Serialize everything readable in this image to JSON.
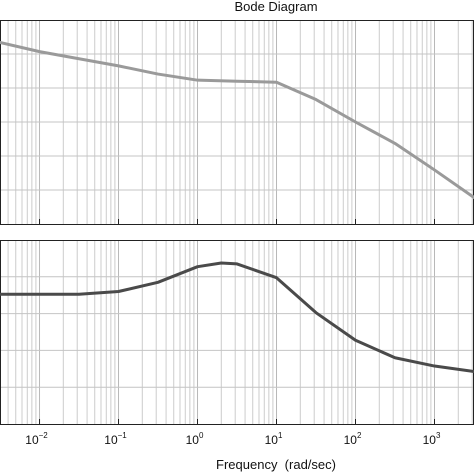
{
  "chart_data": [
    {
      "type": "line",
      "title": "Bode Diagram",
      "xlabel": "Frequency  (rad/sec)",
      "ylabel": "",
      "xscale": "log",
      "xlim": [
        0.00316,
        3162
      ],
      "ylim": [
        0,
        10
      ],
      "grid": true,
      "x_ticks": [
        {
          "base": "10",
          "exp": "−2",
          "value": 0.01
        },
        {
          "base": "10",
          "exp": "−1",
          "value": 0.1
        },
        {
          "base": "10",
          "exp": "0",
          "value": 1
        },
        {
          "base": "10",
          "exp": "1",
          "value": 10
        },
        {
          "base": "10",
          "exp": "2",
          "value": 100
        },
        {
          "base": "10",
          "exp": "3",
          "value": 1000
        }
      ],
      "series": [
        {
          "color": "#9a9a9a",
          "x": [
            0.00316,
            0.01,
            0.0316,
            0.1,
            0.316,
            1,
            3.16,
            10,
            31.6,
            100,
            316,
            1000,
            3162
          ],
          "y": [
            8.9,
            8.45,
            8.1,
            7.75,
            7.35,
            7.05,
            7.0,
            6.95,
            6.1,
            5.0,
            3.95,
            2.65,
            1.3
          ]
        }
      ]
    },
    {
      "type": "line",
      "title": "",
      "xlabel": "",
      "ylabel": "",
      "xscale": "log",
      "xlim": [
        0.00316,
        3162
      ],
      "ylim": [
        0,
        10
      ],
      "grid": true,
      "series": [
        {
          "color": "#4a4a4a",
          "x": [
            0.00316,
            0.01,
            0.0316,
            0.1,
            0.316,
            1,
            2,
            3.16,
            10,
            31.6,
            100,
            316,
            1000,
            3162
          ],
          "y": [
            7.05,
            7.05,
            7.05,
            7.2,
            7.7,
            8.55,
            8.75,
            8.7,
            7.95,
            6.05,
            4.55,
            3.6,
            3.15,
            2.85
          ]
        }
      ]
    }
  ]
}
